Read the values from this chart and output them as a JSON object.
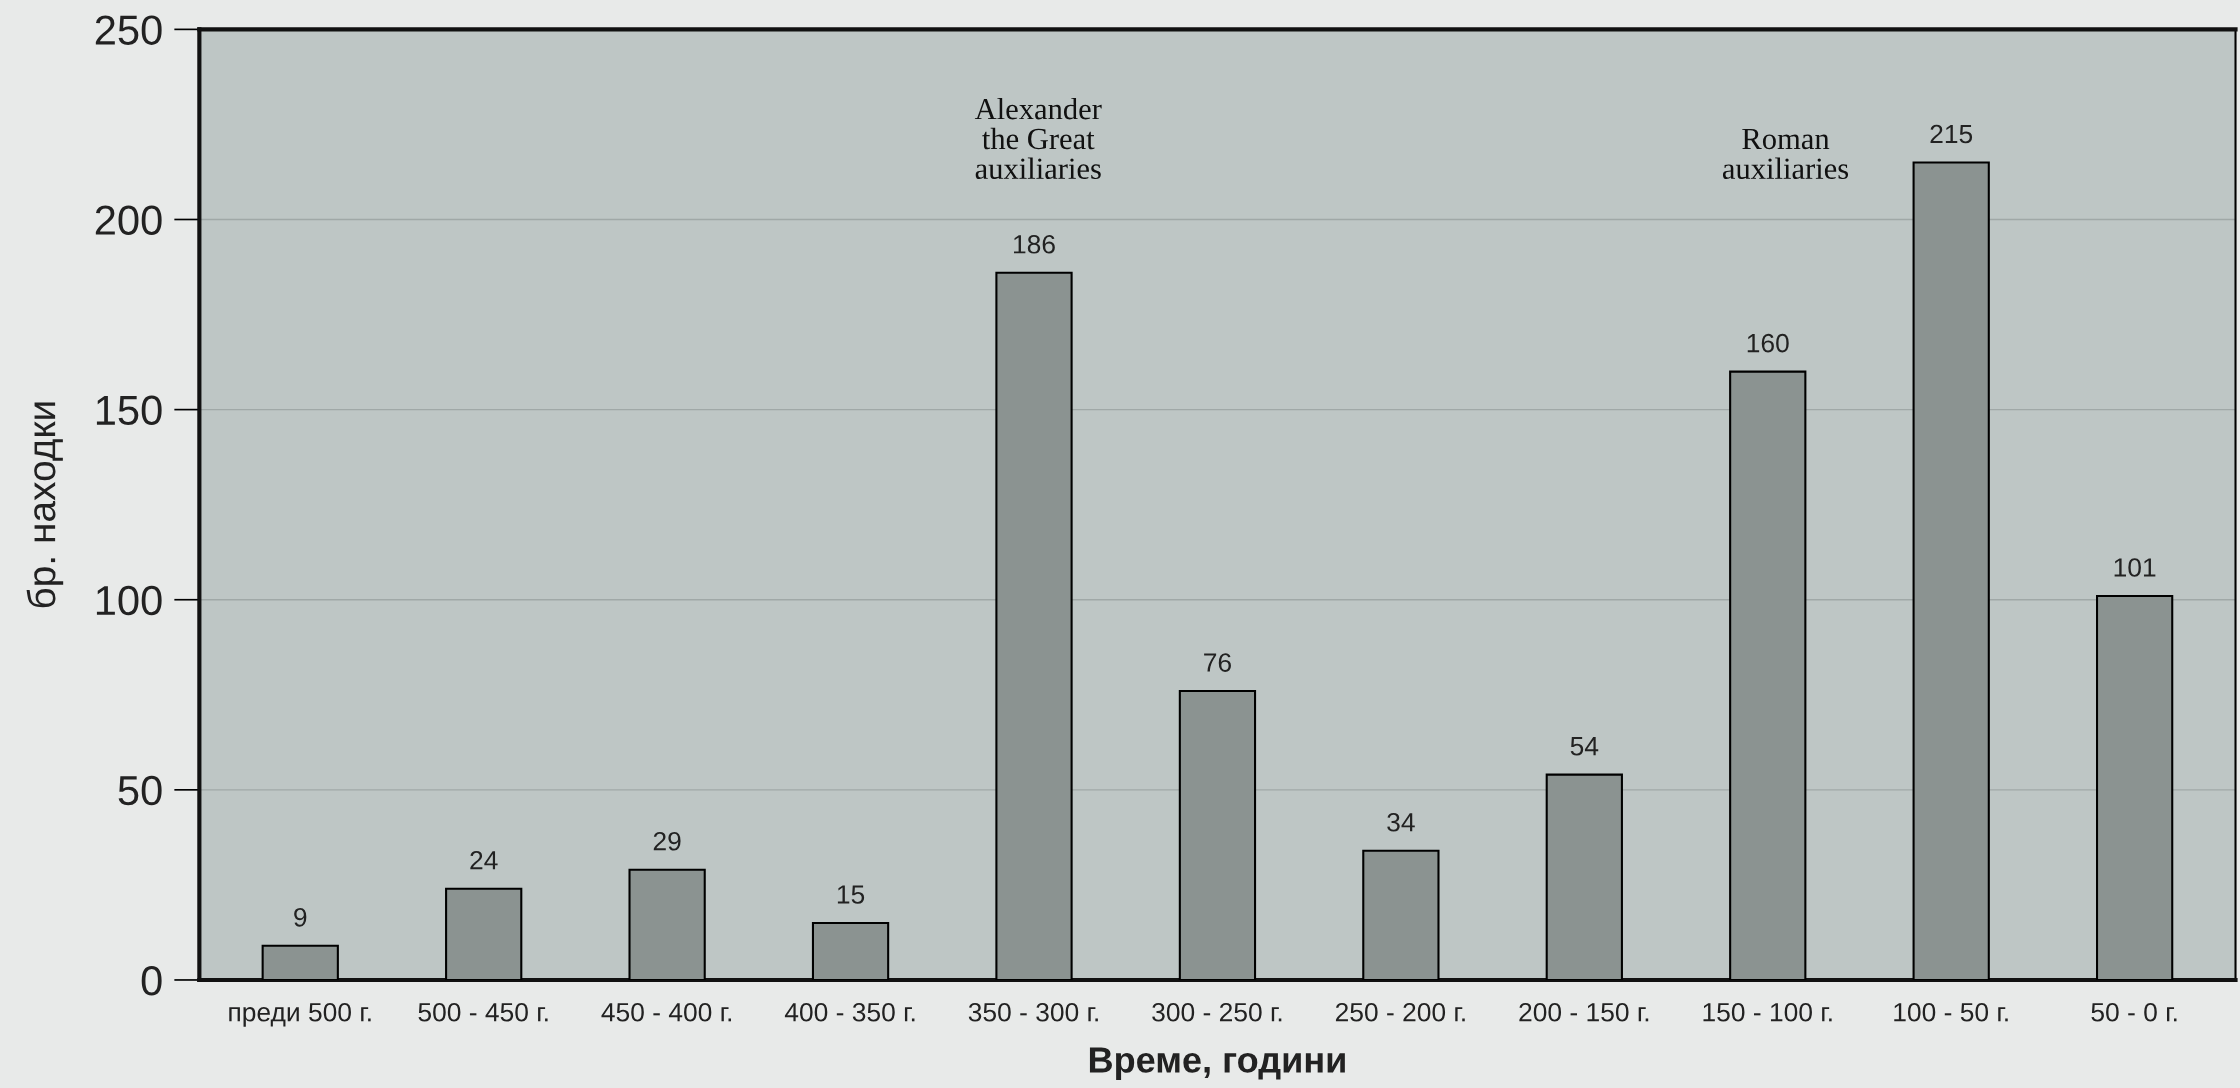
{
  "chart_data": {
    "type": "bar",
    "xlabel": "Време, години",
    "ylabel": "бр. находки",
    "categories": [
      "преди 500 г.",
      "500 - 450 г.",
      "450 - 400 г.",
      "400 - 350 г.",
      "350 - 300 г.",
      "300 - 250 г.",
      "250 - 200 г.",
      "200 - 150 г.",
      "150 - 100 г.",
      "100 - 50 г.",
      "50 - 0 г."
    ],
    "values": [
      9,
      24,
      29,
      15,
      186,
      76,
      34,
      54,
      160,
      215,
      101
    ],
    "color": "#8b9391",
    "ylim": [
      0,
      250
    ],
    "yticks": [
      0,
      50,
      100,
      150,
      200,
      250
    ],
    "grid": "y",
    "data_labels": true,
    "annotations": [
      "Alexander\nthe Great\nauxiliaries",
      "Roman\nauxiliaries"
    ]
  }
}
